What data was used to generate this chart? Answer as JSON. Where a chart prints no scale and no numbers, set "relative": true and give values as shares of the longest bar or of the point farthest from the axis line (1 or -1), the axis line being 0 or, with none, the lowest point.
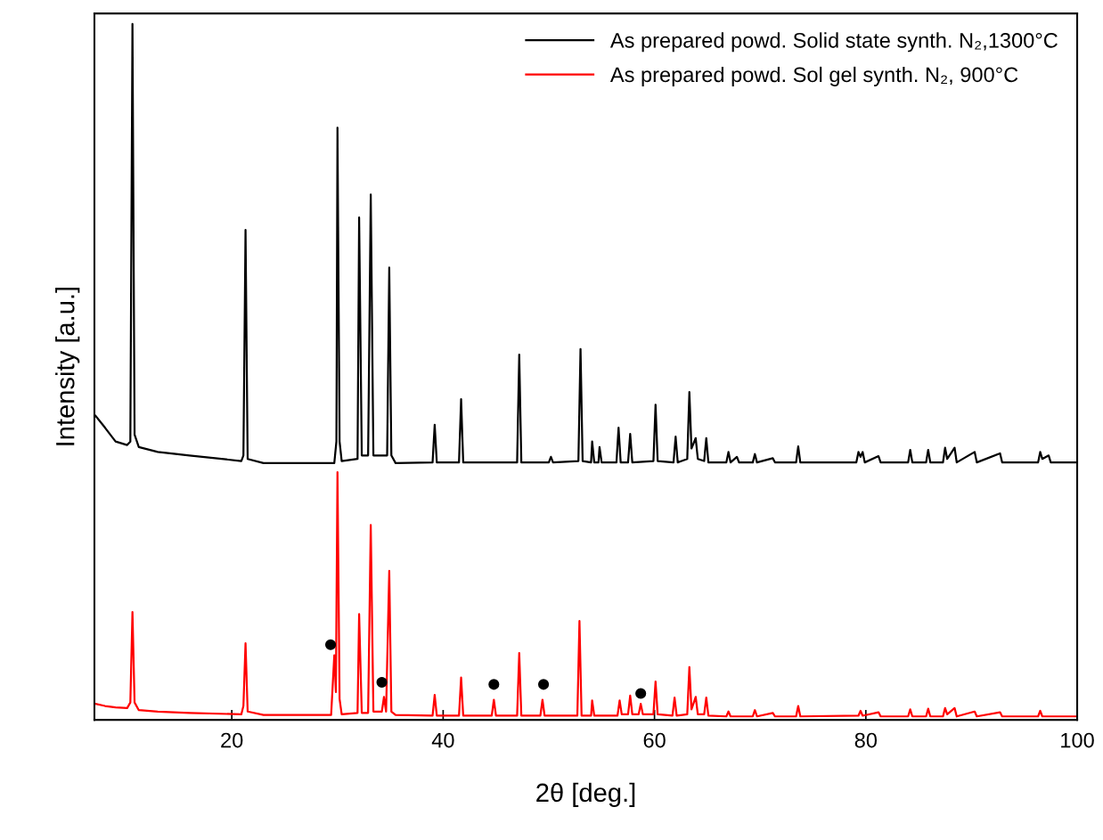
{
  "chart_data": {
    "type": "line",
    "relative": true,
    "xlabel": "2θ [deg.]",
    "ylabel": "Intensity [a.u.]",
    "xlim": [
      7,
      100
    ],
    "xticks": [
      20,
      40,
      60,
      80,
      100
    ],
    "legend": "top right",
    "series": [
      {
        "name": "As prepared powd. Solid state synth. N₂,1300°C",
        "color": "#000000",
        "x": [
          7.1,
          8,
          9,
          10.1,
          10.4,
          10.6,
          10.8,
          11.2,
          13,
          16,
          20.9,
          21.1,
          21.3,
          21.5,
          23,
          29.7,
          29.9,
          30.0,
          30.2,
          30.4,
          31.9,
          32.05,
          32.3,
          32.9,
          33.15,
          33.4,
          34.7,
          34.9,
          35.1,
          35.5,
          39.0,
          39.2,
          39.4,
          41.5,
          41.7,
          41.9,
          47.0,
          47.2,
          47.4,
          50.0,
          50.2,
          50.4,
          52.8,
          53.0,
          53.2,
          54.0,
          54.1,
          54.3,
          54.7,
          54.8,
          55.0,
          56.4,
          56.6,
          56.8,
          57.5,
          57.7,
          57.9,
          59.9,
          60.1,
          60.3,
          61.8,
          62.0,
          62.2,
          63.1,
          63.3,
          63.5,
          63.9,
          64.1,
          64.7,
          64.9,
          65.1,
          66.8,
          67.0,
          67.2,
          67.8,
          68.0,
          69.3,
          69.5,
          69.7,
          71.2,
          71.4,
          73.4,
          73.6,
          73.8,
          79.1,
          79.3,
          79.5,
          79.7,
          79.9,
          81.2,
          81.4,
          84.0,
          84.2,
          84.4,
          85.7,
          85.9,
          86.1,
          87.3,
          87.5,
          87.7,
          88.4,
          88.6,
          90.3,
          90.5,
          92.7,
          92.9,
          96.3,
          96.5,
          96.7,
          97.3,
          97.5,
          100
        ],
        "values": [
          0.437,
          0.42,
          0.4,
          0.395,
          0.4,
          1.0,
          0.41,
          0.392,
          0.385,
          0.38,
          0.372,
          0.38,
          0.704,
          0.375,
          0.369,
          0.369,
          0.4,
          0.851,
          0.4,
          0.372,
          0.375,
          0.722,
          0.38,
          0.38,
          0.755,
          0.38,
          0.38,
          0.65,
          0.38,
          0.369,
          0.37,
          0.424,
          0.37,
          0.37,
          0.461,
          0.37,
          0.37,
          0.525,
          0.37,
          0.37,
          0.378,
          0.37,
          0.372,
          0.533,
          0.372,
          0.37,
          0.4,
          0.37,
          0.37,
          0.392,
          0.37,
          0.37,
          0.42,
          0.37,
          0.37,
          0.411,
          0.37,
          0.372,
          0.453,
          0.372,
          0.37,
          0.407,
          0.37,
          0.375,
          0.471,
          0.39,
          0.405,
          0.375,
          0.372,
          0.405,
          0.37,
          0.37,
          0.385,
          0.37,
          0.378,
          0.37,
          0.37,
          0.382,
          0.37,
          0.376,
          0.37,
          0.37,
          0.393,
          0.37,
          0.37,
          0.385,
          0.378,
          0.385,
          0.37,
          0.379,
          0.37,
          0.37,
          0.388,
          0.37,
          0.37,
          0.388,
          0.37,
          0.37,
          0.391,
          0.375,
          0.391,
          0.37,
          0.385,
          0.37,
          0.383,
          0.37,
          0.37,
          0.385,
          0.375,
          0.38,
          0.37,
          0.37
        ]
      },
      {
        "name": "As prepared powd. Sol gel synth. N₂, 900°C",
        "color": "#ff0000",
        "x": [
          7.1,
          8,
          9,
          10.1,
          10.4,
          10.6,
          10.8,
          11.2,
          13,
          16,
          20.9,
          21.1,
          21.3,
          21.5,
          23,
          29.4,
          29.7,
          29.85,
          30.0,
          30.2,
          30.4,
          31.9,
          32.05,
          32.3,
          32.9,
          33.15,
          33.4,
          34.2,
          34.4,
          34.6,
          34.9,
          35.1,
          35.5,
          39.0,
          39.2,
          39.4,
          41.5,
          41.7,
          41.9,
          44.6,
          44.8,
          45.0,
          47.0,
          47.2,
          47.4,
          49.2,
          49.4,
          49.6,
          52.7,
          52.9,
          53.1,
          54.0,
          54.1,
          54.3,
          56.5,
          56.7,
          56.9,
          57.5,
          57.7,
          57.9,
          58.5,
          58.7,
          58.9,
          59.9,
          60.1,
          60.3,
          61.7,
          61.9,
          62.1,
          63.1,
          63.3,
          63.5,
          63.9,
          64.1,
          64.7,
          64.9,
          65.1,
          66.8,
          67.0,
          67.2,
          69.3,
          69.5,
          69.7,
          71.2,
          71.4,
          73.4,
          73.6,
          73.8,
          79.3,
          79.5,
          79.7,
          81.2,
          81.4,
          84.0,
          84.2,
          84.4,
          85.7,
          85.9,
          86.1,
          87.3,
          87.5,
          87.7,
          88.4,
          88.6,
          90.3,
          90.5,
          92.7,
          92.9,
          96.3,
          96.5,
          96.7,
          100
        ],
        "values": [
          0.023,
          0.02,
          0.018,
          0.017,
          0.025,
          0.155,
          0.025,
          0.014,
          0.012,
          0.01,
          0.008,
          0.02,
          0.11,
          0.012,
          0.007,
          0.007,
          0.093,
          0.04,
          0.356,
          0.03,
          0.008,
          0.01,
          0.152,
          0.01,
          0.01,
          0.28,
          0.012,
          0.012,
          0.033,
          0.012,
          0.214,
          0.012,
          0.007,
          0.006,
          0.036,
          0.006,
          0.006,
          0.061,
          0.006,
          0.006,
          0.029,
          0.006,
          0.006,
          0.096,
          0.006,
          0.006,
          0.029,
          0.006,
          0.006,
          0.142,
          0.006,
          0.006,
          0.028,
          0.006,
          0.006,
          0.028,
          0.008,
          0.008,
          0.035,
          0.008,
          0.008,
          0.023,
          0.008,
          0.008,
          0.055,
          0.008,
          0.006,
          0.032,
          0.006,
          0.008,
          0.076,
          0.015,
          0.033,
          0.008,
          0.008,
          0.032,
          0.006,
          0.005,
          0.012,
          0.005,
          0.005,
          0.014,
          0.005,
          0.01,
          0.005,
          0.005,
          0.02,
          0.005,
          0.006,
          0.013,
          0.006,
          0.011,
          0.005,
          0.005,
          0.015,
          0.005,
          0.005,
          0.016,
          0.005,
          0.005,
          0.017,
          0.008,
          0.017,
          0.005,
          0.012,
          0.005,
          0.011,
          0.005,
          0.005,
          0.013,
          0.005,
          0.005
        ]
      },
      {
        "type": "scatter",
        "marker": "circle",
        "color": "#000000",
        "x": [
          29.35,
          34.2,
          44.8,
          49.5,
          58.7
        ],
        "values": [
          0.108,
          0.054,
          0.051,
          0.051,
          0.038
        ]
      }
    ]
  }
}
